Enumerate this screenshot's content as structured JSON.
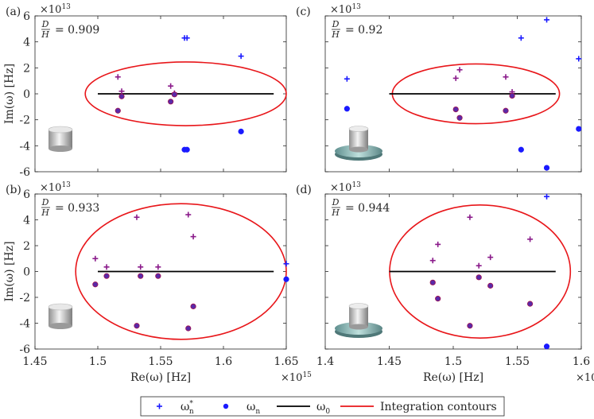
{
  "figure": {
    "xlabel": "Re(ω) [Hz]",
    "ylabel": "Im(ω) [Hz]",
    "xlim": [
      1.45,
      1.65
    ],
    "ylim": [
      -6,
      6
    ],
    "x_exponent": "15",
    "y_exponent": "13",
    "exponent_base": "×10",
    "xticks": [
      "1.45",
      "1.5",
      "1.55",
      "1.6",
      "1.65"
    ],
    "xticks_right": [
      "1.4",
      "1.45",
      "1.5",
      "1.55",
      "1.6"
    ],
    "yticks": [
      "6",
      "4",
      "2",
      "0",
      "-2",
      "-4",
      "-6"
    ],
    "colors": {
      "conjugate": "#1a1aff",
      "pole": "#1a1aff",
      "reference": "#000000",
      "contour": "#e8161a",
      "pole_inside_edge": "#a01050",
      "pole_inside_fill": "#c0287a"
    }
  },
  "legend": {
    "items": [
      {
        "symbol": "plus",
        "label_main": "ω",
        "label_sub": "n",
        "label_sup": "*"
      },
      {
        "symbol": "dot",
        "label_main": "ω",
        "label_sub": "n",
        "label_sup": ""
      },
      {
        "symbol": "line",
        "label_main": "ω",
        "label_sub": "0",
        "label_sup": ""
      },
      {
        "symbol": "ellipse",
        "label_main": "Integration contours",
        "label_sub": "",
        "label_sup": ""
      }
    ]
  },
  "chart_data": [
    {
      "type": "scatter",
      "panel": "(a)",
      "ratio_label": "= 0.909",
      "icon": "cylinder",
      "xlim": [
        1.45,
        1.65
      ],
      "ylim": [
        -6,
        6
      ],
      "reference_line": {
        "x": [
          1.5,
          1.64
        ],
        "y": 0
      },
      "contour": {
        "cx": 1.57,
        "cy": 0,
        "rx": 0.08,
        "ry": 2.45
      },
      "series": [
        {
          "name": "ω_n*",
          "points": [
            [
              1.516,
              1.3
            ],
            [
              1.519,
              0.2
            ],
            [
              1.558,
              0.6
            ],
            [
              1.561,
              0.05
            ],
            [
              1.569,
              4.3
            ],
            [
              1.571,
              4.3
            ],
            [
              1.614,
              2.9
            ]
          ]
        },
        {
          "name": "ω_n",
          "points": [
            [
              1.516,
              -1.3
            ],
            [
              1.519,
              -0.2
            ],
            [
              1.558,
              -0.6
            ],
            [
              1.561,
              -0.05
            ],
            [
              1.569,
              -4.3
            ],
            [
              1.571,
              -4.3
            ],
            [
              1.614,
              -2.9
            ]
          ]
        }
      ]
    },
    {
      "type": "scatter",
      "panel": "(c)",
      "ratio_label": "= 0.92",
      "icon": "cylinder-on-disk",
      "xlim": [
        1.4,
        1.6
      ],
      "ylim": [
        -6,
        6
      ],
      "reference_line": {
        "x": [
          1.45,
          1.58
        ],
        "y": 0
      },
      "contour": {
        "cx": 1.5177,
        "cy": 0,
        "rx": 0.0653,
        "ry": 2.3
      },
      "series": [
        {
          "name": "ω_n*",
          "points": [
            [
              1.417,
              1.15
            ],
            [
              1.502,
              1.2
            ],
            [
              1.505,
              1.85
            ],
            [
              1.541,
              1.3
            ],
            [
              1.546,
              0.15
            ],
            [
              1.553,
              4.3
            ],
            [
              1.573,
              5.7
            ],
            [
              1.598,
              2.7
            ]
          ]
        },
        {
          "name": "ω_n",
          "points": [
            [
              1.417,
              -1.15
            ],
            [
              1.502,
              -1.2
            ],
            [
              1.505,
              -1.85
            ],
            [
              1.541,
              -1.3
            ],
            [
              1.546,
              -0.15
            ],
            [
              1.553,
              -4.3
            ],
            [
              1.573,
              -5.7
            ],
            [
              1.598,
              -2.7
            ]
          ]
        }
      ]
    },
    {
      "type": "scatter",
      "panel": "(b)",
      "ratio_label": "= 0.933",
      "icon": "cylinder",
      "xlim": [
        1.45,
        1.65
      ],
      "ylim": [
        -6,
        6
      ],
      "reference_line": {
        "x": [
          1.5,
          1.64
        ],
        "y": 0
      },
      "contour": {
        "cx": 1.5662,
        "cy": 0,
        "rx": 0.0838,
        "ry": 5.25
      },
      "series": [
        {
          "name": "ω_n*",
          "points": [
            [
              1.498,
              1.0
            ],
            [
              1.507,
              0.35
            ],
            [
              1.531,
              4.2
            ],
            [
              1.534,
              0.35
            ],
            [
              1.548,
              0.35
            ],
            [
              1.572,
              4.4
            ],
            [
              1.576,
              2.7
            ],
            [
              1.65,
              0.6
            ]
          ]
        },
        {
          "name": "ω_n",
          "points": [
            [
              1.498,
              -1.0
            ],
            [
              1.507,
              -0.35
            ],
            [
              1.531,
              -4.2
            ],
            [
              1.534,
              -0.35
            ],
            [
              1.548,
              -0.35
            ],
            [
              1.572,
              -4.4
            ],
            [
              1.576,
              -2.7
            ],
            [
              1.65,
              -0.6
            ]
          ]
        }
      ]
    },
    {
      "type": "scatter",
      "panel": "(d)",
      "ratio_label": "= 0.944",
      "icon": "cylinder-on-disk",
      "xlim": [
        1.4,
        1.6
      ],
      "ylim": [
        -6,
        6
      ],
      "reference_line": {
        "x": [
          1.45,
          1.58
        ],
        "y": 0
      },
      "contour": {
        "cx": 1.5209,
        "cy": 0,
        "rx": 0.0706,
        "ry": 5.15
      },
      "series": [
        {
          "name": "ω_n*",
          "points": [
            [
              1.484,
              0.85
            ],
            [
              1.488,
              2.1
            ],
            [
              1.513,
              4.2
            ],
            [
              1.52,
              0.45
            ],
            [
              1.529,
              1.1
            ],
            [
              1.56,
              2.5
            ],
            [
              1.573,
              5.8
            ]
          ]
        },
        {
          "name": "ω_n",
          "points": [
            [
              1.484,
              -0.85
            ],
            [
              1.488,
              -2.1
            ],
            [
              1.513,
              -4.2
            ],
            [
              1.52,
              -0.45
            ],
            [
              1.529,
              -1.1
            ],
            [
              1.56,
              -2.5
            ],
            [
              1.573,
              -5.8
            ]
          ]
        }
      ]
    }
  ]
}
